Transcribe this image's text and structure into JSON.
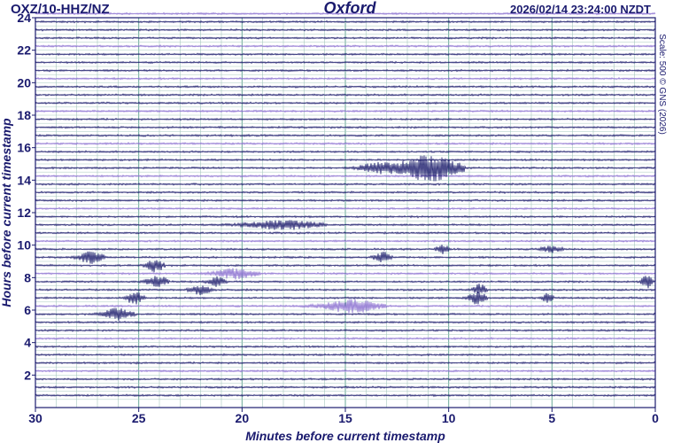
{
  "header": {
    "station": "OXZ/10-HHZ/NZ",
    "site": "Oxford",
    "timestamp": "2026/02/14 23:24:00 NZDT"
  },
  "side_note": "Scale: 500 © GNS (2026)",
  "colors": {
    "text": "#1a1a6e",
    "trace_dark": "#1c1c6c",
    "trace_light": "#8a6fd0",
    "grid": "#a8c8c0",
    "minute_grid": "#6aa898"
  },
  "chart_data": {
    "type": "line",
    "xlabel": "Minutes before current timestamp",
    "ylabel": "Hours before current timestamp",
    "x_range": [
      30,
      0
    ],
    "y_range": [
      0,
      24
    ],
    "x_ticks": [
      30,
      25,
      20,
      15,
      10,
      5,
      0
    ],
    "x_tick_labels": [
      "30",
      "25",
      "20",
      "15",
      "10",
      "5",
      "0"
    ],
    "y_ticks": [
      2,
      4,
      6,
      8,
      10,
      12,
      14,
      16,
      18,
      20,
      22,
      24
    ],
    "y_tick_labels": [
      "2",
      "4",
      "6",
      "8",
      "10",
      "12",
      "14",
      "16",
      "18",
      "20",
      "22",
      "24"
    ],
    "grid": true,
    "trace_count": 48,
    "trace_interval_hours": 0.5,
    "events": [
      {
        "hour": 14.5,
        "minute": 11.0,
        "amplitude": 1.0,
        "duration": 3.0
      },
      {
        "hour": 14.5,
        "minute": 13.5,
        "amplitude": 0.35,
        "duration": 1.6
      },
      {
        "hour": 11.0,
        "minute": 18.0,
        "amplitude": 0.35,
        "duration": 3.5
      },
      {
        "hour": 9.0,
        "minute": 27.3,
        "amplitude": 0.45,
        "duration": 1.2
      },
      {
        "hour": 9.0,
        "minute": 13.2,
        "amplitude": 0.4,
        "duration": 0.8
      },
      {
        "hour": 9.5,
        "minute": 10.3,
        "amplitude": 0.35,
        "duration": 0.6
      },
      {
        "hour": 8.5,
        "minute": 24.2,
        "amplitude": 0.5,
        "duration": 0.8
      },
      {
        "hour": 8.0,
        "minute": 20.3,
        "amplitude": 0.4,
        "duration": 2.0
      },
      {
        "hour": 7.5,
        "minute": 24.1,
        "amplitude": 0.45,
        "duration": 1.0
      },
      {
        "hour": 7.5,
        "minute": 21.2,
        "amplitude": 0.4,
        "duration": 0.8
      },
      {
        "hour": 7.5,
        "minute": 0.4,
        "amplitude": 0.5,
        "duration": 0.5
      },
      {
        "hour": 7.0,
        "minute": 22.0,
        "amplitude": 0.35,
        "duration": 1.0
      },
      {
        "hour": 7.0,
        "minute": 8.5,
        "amplitude": 0.4,
        "duration": 0.6
      },
      {
        "hour": 6.5,
        "minute": 25.2,
        "amplitude": 0.5,
        "duration": 0.8
      },
      {
        "hour": 6.5,
        "minute": 8.6,
        "amplitude": 0.5,
        "duration": 0.8
      },
      {
        "hour": 6.5,
        "minute": 5.2,
        "amplitude": 0.4,
        "duration": 0.5
      },
      {
        "hour": 6.0,
        "minute": 14.7,
        "amplitude": 0.5,
        "duration": 2.8
      },
      {
        "hour": 5.5,
        "minute": 26.0,
        "amplitude": 0.45,
        "duration": 1.4
      },
      {
        "hour": 9.5,
        "minute": 5.0,
        "amplitude": 0.25,
        "duration": 1.0
      }
    ]
  }
}
